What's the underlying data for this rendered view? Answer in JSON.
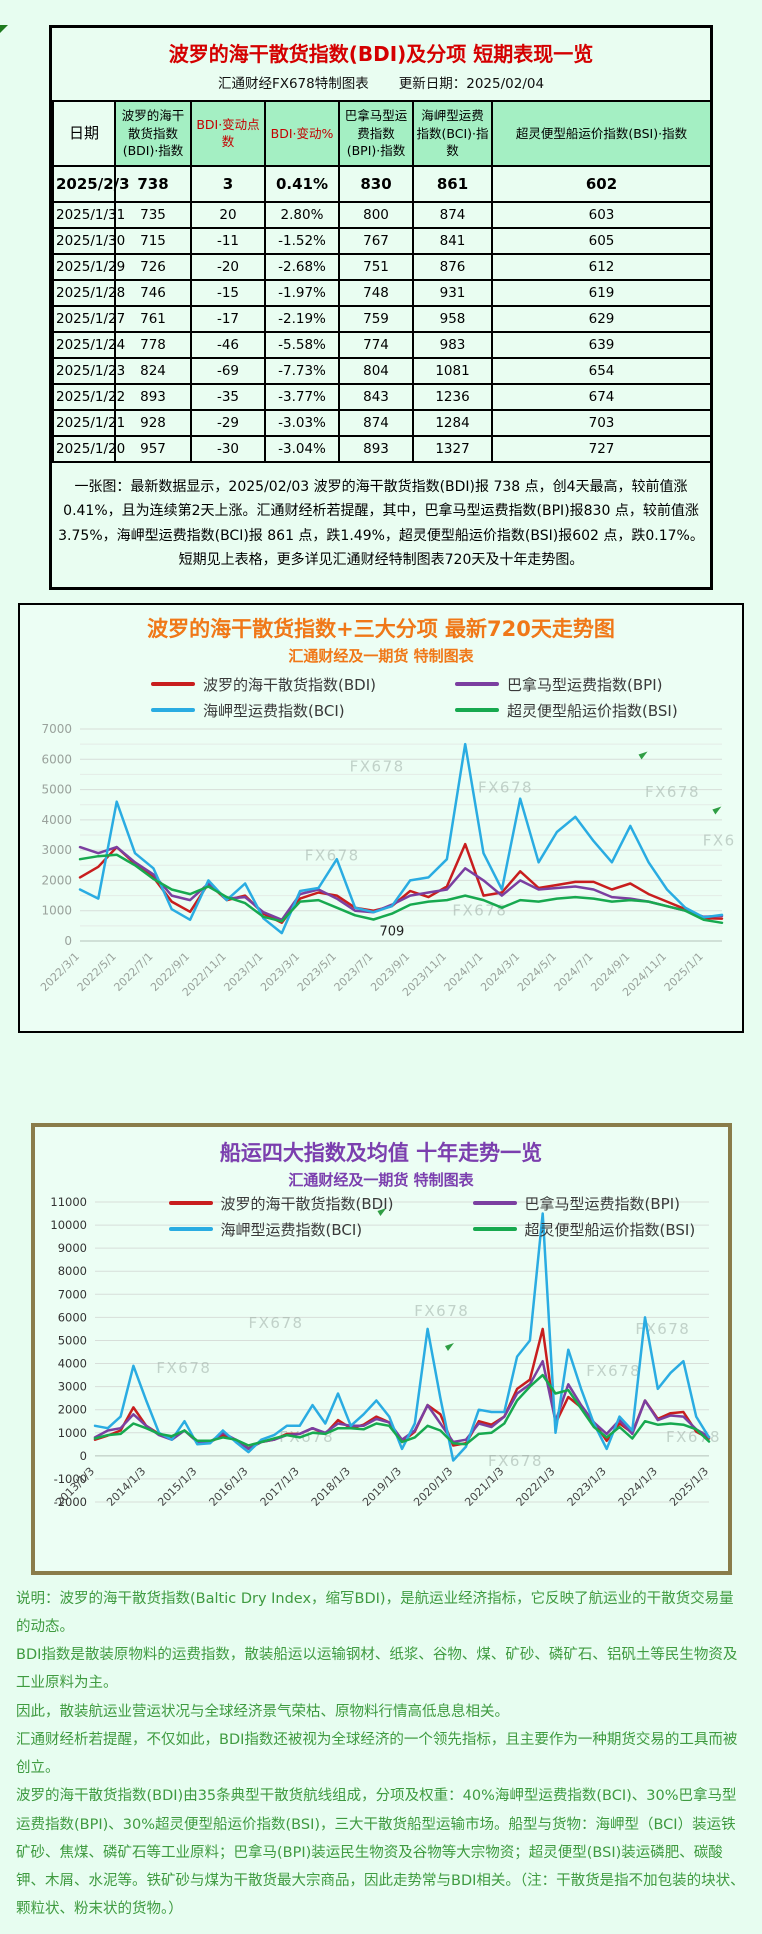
{
  "watermark": "FX678",
  "report_table": {
    "title": "波罗的海干散货指数(BDI)及分项 短期表现一览",
    "source": "汇通财经FX678特制图表",
    "update_label": "更新日期：2025/02/04",
    "columns": [
      "日期",
      "波罗的海干散货指数(BDI)·指数",
      "BDI·变动点数",
      "BDI·变动%",
      "巴拿马型运费指数(BPI)·指数",
      "海岬型运费指数(BCI)·指数",
      "超灵便型船运价指数(BSI)·指数"
    ],
    "red_columns": [
      2,
      3
    ],
    "rows": [
      [
        "2025/2/3",
        "738",
        "3",
        "0.41%",
        "830",
        "861",
        "602"
      ],
      [
        "2025/1/31",
        "735",
        "20",
        "2.80%",
        "800",
        "874",
        "603"
      ],
      [
        "2025/1/30",
        "715",
        "-11",
        "-1.52%",
        "767",
        "841",
        "605"
      ],
      [
        "2025/1/29",
        "726",
        "-20",
        "-2.68%",
        "751",
        "876",
        "612"
      ],
      [
        "2025/1/28",
        "746",
        "-15",
        "-1.97%",
        "748",
        "931",
        "619"
      ],
      [
        "2025/1/27",
        "761",
        "-17",
        "-2.19%",
        "759",
        "958",
        "629"
      ],
      [
        "2025/1/24",
        "778",
        "-46",
        "-5.58%",
        "774",
        "983",
        "639"
      ],
      [
        "2025/1/23",
        "824",
        "-69",
        "-7.73%",
        "804",
        "1081",
        "654"
      ],
      [
        "2025/1/22",
        "893",
        "-35",
        "-3.77%",
        "843",
        "1236",
        "674"
      ],
      [
        "2025/1/21",
        "928",
        "-29",
        "-3.03%",
        "874",
        "1284",
        "703"
      ],
      [
        "2025/1/20",
        "957",
        "-30",
        "-3.04%",
        "893",
        "1327",
        "727"
      ]
    ],
    "summary": "一张图：最新数据显示，2025/02/03 波罗的海干散货指数(BDI)报 738 点，创4天最高，较前值涨0.41%，且为连续第2天上涨。汇通财经析若提醒，其中，巴拿马型运费指数(BPI)报830 点，较前值涨3.75%，海岬型运费指数(BCI)报 861 点，跌1.49%，超灵便型船运价指数(BSI)报602 点，跌0.17%。短期见上表格，更多详见汇通财经特制图表720天及十年走势图。"
  },
  "chart_data": [
    {
      "type": "line",
      "title": "波罗的海干散货指数+三大分项  最新720天走势图",
      "subtitle": "汇通财经及一期货 特制图表",
      "title_color": "#f07818",
      "ylim": [
        0,
        7000
      ],
      "ytick_step": 1000,
      "grid": true,
      "legend_position": "top",
      "x": [
        "2022/3",
        "2022/4",
        "2022/5",
        "2022/6",
        "2022/7",
        "2022/8",
        "2022/9",
        "2022/10",
        "2022/11",
        "2022/12",
        "2023/1",
        "2023/2",
        "2023/3",
        "2023/4",
        "2023/5",
        "2023/6",
        "2023/7",
        "2023/8",
        "2023/9",
        "2023/10",
        "2023/11",
        "2023/12",
        "2024/1",
        "2024/2",
        "2024/3",
        "2024/4",
        "2024/5",
        "2024/6",
        "2024/7",
        "2024/8",
        "2024/9",
        "2024/10",
        "2024/11",
        "2024/12",
        "2025/1",
        "2025/2"
      ],
      "xtick_labels": [
        "2022/3/1",
        "2022/5/1",
        "2022/7/1",
        "2022/9/1",
        "2022/11/1",
        "2023/1/1",
        "2023/3/1",
        "2023/5/1",
        "2023/7/1",
        "2023/9/1",
        "2023/11/1",
        "2024/1/1",
        "2024/3/1",
        "2024/5/1",
        "2024/7/1",
        "2024/9/1",
        "2024/11/1",
        "2025/1/1"
      ],
      "xtick_every": 2,
      "series": [
        {
          "name": "波罗的海干散货指数(BDI)",
          "color": "#c81e1e",
          "values": [
            2100,
            2450,
            3100,
            2550,
            2100,
            1300,
            965,
            1900,
            1350,
            1500,
            900,
            600,
            1400,
            1600,
            1500,
            1100,
            1000,
            1150,
            1650,
            1450,
            1800,
            3200,
            1500,
            1600,
            2300,
            1750,
            1850,
            1950,
            1950,
            1700,
            1900,
            1550,
            1300,
            1050,
            750,
            738
          ]
        },
        {
          "name": "巴拿马型运费指数(BPI)",
          "color": "#7b3fa0",
          "values": [
            3100,
            2900,
            3100,
            2600,
            2200,
            1500,
            1350,
            1900,
            1400,
            1450,
            950,
            700,
            1550,
            1700,
            1400,
            1000,
            950,
            1200,
            1500,
            1600,
            1700,
            2400,
            2000,
            1500,
            2000,
            1700,
            1750,
            1800,
            1700,
            1450,
            1400,
            1300,
            1150,
            1000,
            800,
            830
          ]
        },
        {
          "name": "海岬型运费指数(BCI)",
          "color": "#2aace2",
          "values": [
            1700,
            1400,
            4600,
            2900,
            2400,
            1050,
            700,
            2000,
            1350,
            1900,
            750,
            260,
            1650,
            1750,
            2700,
            1100,
            950,
            1150,
            2000,
            2100,
            2700,
            6500,
            2900,
            1700,
            4700,
            2600,
            3600,
            4100,
            3300,
            2600,
            3800,
            2600,
            1700,
            1100,
            780,
            861
          ]
        },
        {
          "name": "超灵便型船运价指数(BSI)",
          "color": "#17a94f",
          "values": [
            2700,
            2800,
            2850,
            2500,
            2050,
            1700,
            1550,
            1800,
            1450,
            1250,
            800,
            650,
            1300,
            1350,
            1100,
            850,
            709,
            900,
            1200,
            1300,
            1350,
            1500,
            1350,
            1100,
            1350,
            1300,
            1400,
            1450,
            1400,
            1300,
            1350,
            1300,
            1150,
            1000,
            700,
            602
          ]
        }
      ],
      "annotations": [
        {
          "text": "709",
          "xi": 16,
          "y": 709
        }
      ]
    },
    {
      "type": "line",
      "title": "船运四大指数及均值 十年走势一览",
      "subtitle": "汇通财经及一期货 特制图表",
      "title_color": "#7b3fae",
      "ylim": [
        -2000,
        11000
      ],
      "ytick_step": 1000,
      "grid": true,
      "legend_position": "top",
      "x": [
        "2013/1",
        "2013/4",
        "2013/7",
        "2013/10",
        "2014/1",
        "2014/4",
        "2014/7",
        "2014/10",
        "2015/1",
        "2015/4",
        "2015/7",
        "2015/10",
        "2016/1",
        "2016/4",
        "2016/7",
        "2016/10",
        "2017/1",
        "2017/4",
        "2017/7",
        "2017/10",
        "2018/1",
        "2018/4",
        "2018/7",
        "2018/10",
        "2019/1",
        "2019/4",
        "2019/7",
        "2019/10",
        "2020/1",
        "2020/4",
        "2020/7",
        "2020/10",
        "2021/1",
        "2021/4",
        "2021/7",
        "2021/10",
        "2022/1",
        "2022/4",
        "2022/7",
        "2022/10",
        "2023/1",
        "2023/4",
        "2023/7",
        "2023/10",
        "2024/1",
        "2024/4",
        "2024/7",
        "2024/10",
        "2025/1"
      ],
      "xtick_labels": [
        "2013/1/3",
        "2014/1/3",
        "2015/1/3",
        "2016/1/3",
        "2017/1/3",
        "2018/1/3",
        "2019/1/3",
        "2020/1/3",
        "2021/1/3",
        "2022/1/3",
        "2023/1/3",
        "2024/1/3",
        "2025/1/3"
      ],
      "xtick_every": 4,
      "series": [
        {
          "name": "波罗的海干散货指数(BDI)",
          "color": "#c81e1e",
          "values": [
            700,
            880,
            1100,
            2100,
            1300,
            950,
            750,
            1100,
            600,
            590,
            900,
            700,
            320,
            600,
            700,
            950,
            950,
            1200,
            950,
            1550,
            1200,
            1350,
            1700,
            1450,
            600,
            1050,
            2200,
            1800,
            450,
            550,
            1500,
            1350,
            1700,
            2900,
            3300,
            5500,
            1400,
            2550,
            2100,
            1450,
            650,
            1400,
            1000,
            2400,
            1600,
            1850,
            1900,
            1050,
            750
          ]
        },
        {
          "name": "巴拿马型运费指数(BPI)",
          "color": "#7b3fa0",
          "values": [
            800,
            1100,
            1200,
            1800,
            1300,
            900,
            700,
            1100,
            600,
            600,
            1000,
            700,
            300,
            600,
            700,
            900,
            950,
            1200,
            1000,
            1400,
            1300,
            1300,
            1600,
            1450,
            700,
            1100,
            2200,
            1400,
            600,
            700,
            1400,
            1250,
            1700,
            2700,
            3100,
            4100,
            1500,
            3100,
            2200,
            1450,
            950,
            1550,
            950,
            2400,
            1550,
            1750,
            1700,
            1150,
            820
          ]
        },
        {
          "name": "海岬型运费指数(BCI)",
          "color": "#2aace2",
          "values": [
            1300,
            1200,
            1700,
            3900,
            2400,
            1000,
            700,
            1500,
            500,
            550,
            1100,
            600,
            161,
            700,
            900,
            1300,
            1300,
            2200,
            1400,
            2700,
            1300,
            1800,
            2400,
            1700,
            300,
            1400,
            5500,
            2500,
            -200,
            400,
            2000,
            1900,
            1900,
            4300,
            5000,
            10500,
            1000,
            4600,
            2900,
            1400,
            300,
            1700,
            1100,
            6000,
            2900,
            3600,
            4100,
            1700,
            800
          ]
        },
        {
          "name": "超灵便型船运价指数(BSI)",
          "color": "#17a94f",
          "values": [
            750,
            900,
            950,
            1400,
            1200,
            950,
            850,
            1100,
            650,
            650,
            800,
            700,
            450,
            600,
            750,
            900,
            800,
            1000,
            950,
            1200,
            1200,
            1150,
            1400,
            1300,
            600,
            800,
            1300,
            1100,
            550,
            500,
            950,
            1000,
            1400,
            2400,
            3000,
            3500,
            2700,
            2850,
            2050,
            1250,
            800,
            1250,
            750,
            1500,
            1350,
            1400,
            1350,
            1150,
            620
          ]
        }
      ],
      "annotations": []
    }
  ],
  "notes": [
    "说明：波罗的海干散货指数(Baltic Dry Index，缩写BDI)，是航运业经济指标，它反映了航运业的干散货交易量的动态。",
    "BDI指数是散装原物料的运费指数，散装船运以运输钢材、纸浆、谷物、煤、矿砂、磷矿石、铝矾土等民生物资及工业原料为主。",
    "因此，散装航运业营运状况与全球经济景气荣枯、原物料行情高低息息相关。",
    "汇通财经析若提醒，不仅如此，BDI指数还被视为全球经济的一个领先指标，且主要作为一种期货交易的工具而被创立。",
    "波罗的海干散货指数(BDI)由35条典型干散货航线组成，分项及权重：40%海岬型运费指数(BCI)、30%巴拿马型运费指数(BPI)、30%超灵便型船运价指数(BSI)，三大干散货船型运输市场。船型与货物：海岬型（BCI）装运铁矿砂、焦煤、磷矿石等工业原料；巴拿马(BPI)装运民生物资及谷物等大宗物资；超灵便型(BSI)装运磷肥、碳酸钾、木屑、水泥等。铁矿砂与煤为干散货最大宗商品，因此走势常与BDI相关。（注：干散货是指不加包装的块状、颗粒状、粉末状的货物。）"
  ]
}
